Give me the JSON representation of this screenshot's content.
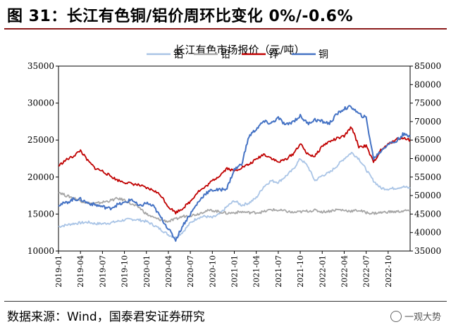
{
  "figure": {
    "title": "图 31：长江有色铜/铝价周环比变化 0%/-0.6%",
    "source": "数据来源：Wind，国泰君安证券研究",
    "watermark": "一观大势",
    "watermark_icon": "wechat-icon"
  },
  "colors": {
    "rule": "#8b1a1a",
    "series": [
      "#a9c4e6",
      "#a6a6a6",
      "#c00000",
      "#4472c4"
    ]
  },
  "chart_data": {
    "type": "line",
    "title": "长江有色市场报价（元/吨）",
    "xlabel": "",
    "ylabel": "",
    "grid": false,
    "legend_position": "top",
    "xlim": [
      0,
      48
    ],
    "y_left": {
      "lim": [
        10000,
        35000
      ],
      "ticks": [
        "10000",
        "15000",
        "20000",
        "25000",
        "30000",
        "35000"
      ]
    },
    "y_right": {
      "lim": [
        35000,
        85000
      ],
      "ticks": [
        "35000",
        "40000",
        "45000",
        "50000",
        "55000",
        "60000",
        "65000",
        "70000",
        "75000",
        "80000",
        "85000"
      ]
    },
    "x_ticks": [
      "2019-01",
      "2019-04",
      "2019-07",
      "2019-10",
      "2020-01",
      "2020-04",
      "2020-07",
      "2020-10",
      "2021-01",
      "2021-04",
      "2021-07",
      "2021-10",
      "2022-01",
      "2022-04",
      "2022-07",
      "2022-10"
    ],
    "series": [
      {
        "name": "铝",
        "axis": "left",
        "x": [
          0,
          1,
          2,
          3,
          4,
          5,
          6,
          7,
          8,
          9,
          10,
          11,
          12,
          13,
          14,
          15,
          16,
          17,
          18,
          19,
          20,
          21,
          22,
          23,
          24,
          25,
          26,
          27,
          28,
          29,
          30,
          31,
          32,
          33,
          34,
          35,
          36,
          37,
          38,
          39,
          40,
          41,
          42,
          43,
          44,
          45,
          46,
          47,
          48
        ],
        "values": [
          13300,
          13500,
          13700,
          13800,
          13900,
          13700,
          13700,
          13800,
          14000,
          14200,
          14300,
          14200,
          14000,
          13500,
          12900,
          12200,
          11800,
          12600,
          13800,
          14500,
          14700,
          14500,
          15000,
          16000,
          16800,
          16200,
          16500,
          17200,
          18700,
          19500,
          19300,
          20100,
          21000,
          22500,
          21500,
          19500,
          20200,
          20600,
          21500,
          22500,
          23300,
          22500,
          21000,
          19500,
          18500,
          18400,
          18500,
          18700,
          18500
        ]
      },
      {
        "name": "铅",
        "axis": "left",
        "x": [
          0,
          1,
          2,
          3,
          4,
          5,
          6,
          7,
          8,
          9,
          10,
          11,
          12,
          13,
          14,
          15,
          16,
          17,
          18,
          19,
          20,
          21,
          22,
          23,
          24,
          25,
          26,
          27,
          28,
          29,
          30,
          31,
          32,
          33,
          34,
          35,
          36,
          37,
          38,
          39,
          40,
          41,
          42,
          43,
          44,
          45,
          46,
          47,
          48
        ],
        "values": [
          18000,
          17500,
          17200,
          16800,
          16500,
          16400,
          16600,
          16800,
          17100,
          16900,
          16300,
          15900,
          15000,
          14500,
          14200,
          14000,
          14300,
          14700,
          14800,
          15000,
          15400,
          15500,
          15300,
          15100,
          15200,
          15300,
          15200,
          15200,
          15300,
          15600,
          15500,
          15400,
          15200,
          15300,
          15400,
          15500,
          15300,
          15400,
          15600,
          15500,
          15400,
          15500,
          15200,
          15100,
          15200,
          15300,
          15300,
          15400,
          15500
        ]
      },
      {
        "name": "锌",
        "axis": "left",
        "x": [
          0,
          1,
          2,
          3,
          4,
          5,
          6,
          7,
          8,
          9,
          10,
          11,
          12,
          13,
          14,
          15,
          16,
          17,
          18,
          19,
          20,
          21,
          22,
          23,
          24,
          25,
          26,
          27,
          28,
          29,
          30,
          31,
          32,
          33,
          34,
          35,
          36,
          37,
          38,
          39,
          40,
          41,
          42,
          43,
          44,
          45,
          46,
          47,
          48
        ],
        "values": [
          21500,
          22300,
          22800,
          23600,
          22200,
          21200,
          20800,
          20200,
          19600,
          19300,
          19100,
          18900,
          18500,
          18200,
          17500,
          16000,
          15200,
          15800,
          16700,
          18000,
          18600,
          19500,
          20200,
          21200,
          20800,
          21300,
          21700,
          22400,
          23100,
          22600,
          22000,
          22400,
          23100,
          24500,
          23100,
          22800,
          24200,
          24800,
          25200,
          25500,
          26800,
          24100,
          24200,
          22000,
          23600,
          24400,
          25100,
          25300,
          25000
        ]
      },
      {
        "name": "铜",
        "axis": "right",
        "x": [
          0,
          1,
          2,
          3,
          4,
          5,
          6,
          7,
          8,
          9,
          10,
          11,
          12,
          13,
          14,
          15,
          16,
          17,
          18,
          19,
          20,
          21,
          22,
          23,
          24,
          25,
          26,
          27,
          28,
          29,
          30,
          31,
          32,
          33,
          34,
          35,
          36,
          37,
          38,
          39,
          40,
          41,
          42,
          43,
          44,
          45,
          46,
          47,
          48
        ],
        "values": [
          47500,
          48000,
          49000,
          49000,
          48000,
          47500,
          47000,
          46500,
          47500,
          48000,
          49000,
          47000,
          48000,
          47000,
          44000,
          41000,
          38000,
          42000,
          45000,
          48000,
          50500,
          51500,
          51500,
          52000,
          57000,
          58500,
          66000,
          68000,
          70000,
          69500,
          71000,
          69000,
          70000,
          71500,
          69500,
          70500,
          70000,
          69500,
          72000,
          73500,
          74000,
          72000,
          71000,
          60000,
          62000,
          64000,
          64500,
          66500,
          66000
        ]
      }
    ]
  }
}
